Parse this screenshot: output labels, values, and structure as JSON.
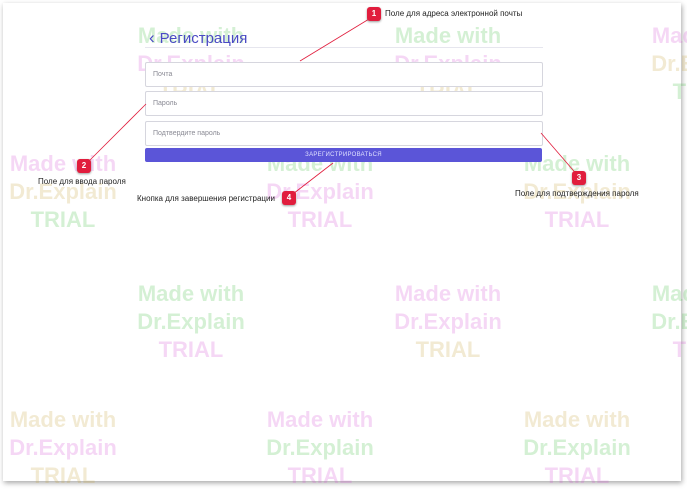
{
  "form": {
    "title": "Регистрация",
    "email_placeholder": "Почта",
    "password_placeholder": "Пароль",
    "confirm_placeholder": "Подтвердите пароль",
    "register_button": "ЗАРЕГИСТРИРОВАТЬСЯ"
  },
  "callouts": [
    {
      "number": "1",
      "text": "Поле для адреса электронной почты"
    },
    {
      "number": "2",
      "text": "Поле для ввода пароля"
    },
    {
      "number": "3",
      "text": "Поле для подтверждения пароля"
    },
    {
      "number": "4",
      "text": "Кнопка для завершения регистрации"
    }
  ],
  "watermark": {
    "line1": "Made with",
    "line2": "Dr.Explain",
    "line3": "TRIAL"
  },
  "colors": {
    "accent": "#5b55d8",
    "title": "#4a4ac4",
    "callout": "#e11d3d"
  }
}
